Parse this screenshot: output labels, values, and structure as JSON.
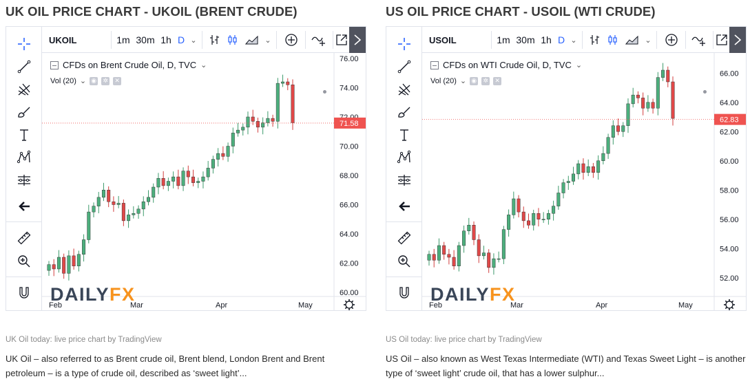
{
  "uk": {
    "heading": "UK OIL PRICE CHART - UKOIL (BRENT CRUDE)",
    "symbol": "UKOIL",
    "intervals": [
      "1m",
      "30m",
      "1h",
      "D"
    ],
    "legend": "CFDs on Brent Crude Oil, D, TVC",
    "volume": "Vol (20)",
    "price_tag": "71.58",
    "price_ticks": [
      "76.00",
      "74.00",
      "72.00",
      "70.00",
      "68.00",
      "66.00",
      "64.00",
      "62.00",
      "60.00"
    ],
    "month_ticks": [
      "Feb",
      "Mar",
      "Apr",
      "May"
    ],
    "caption": "UK Oil today: live price chart by TradingView",
    "description": "UK Oil – also referred to as Brent crude oil, Brent blend, London Brent and Brent petroleum – is a type of crude oil, described as ‘sweet light’...",
    "logo_main": "DAILY",
    "logo_accent": "FX"
  },
  "us": {
    "heading": "US OIL PRICE CHART - USOIL (WTI CRUDE)",
    "symbol": "USOIL",
    "intervals": [
      "1m",
      "30m",
      "1h",
      "D"
    ],
    "legend": "CFDs on WTI Crude Oil, D, TVC",
    "volume": "Vol (20)",
    "price_tag": "62.83",
    "price_ticks": [
      "66.00",
      "64.00",
      "62.00",
      "60.00",
      "58.00",
      "56.00",
      "54.00",
      "52.00"
    ],
    "month_ticks": [
      "Feb",
      "Mar",
      "Apr",
      "May"
    ],
    "caption": "US Oil today: live price chart by TradingView",
    "description": "US Oil – also known as West Texas Intermediate (WTI) and Texas Sweet Light – is another type of ‘sweet light’ crude oil, that has a lower sulphur...",
    "logo_main": "DAILY",
    "logo_accent": "FX"
  },
  "tools": [
    "crosshair-icon",
    "trend-line-icon",
    "fib-icon",
    "brush-icon",
    "text-icon",
    "pattern-icon",
    "measure-icon",
    "back-arrow-icon",
    "ruler-icon",
    "zoom-icon",
    "magnet-icon"
  ],
  "colors": {
    "up": "#26a69a",
    "down": "#ef5350",
    "up_alt": "#3d9a6b",
    "down_alt": "#d23c3c",
    "accent": "#2962ff",
    "tag": "#ef5350"
  },
  "chart_data": [
    {
      "type": "candlestick",
      "title": "CFDs on Brent Crude Oil, D, TVC",
      "ylim": [
        60,
        76
      ],
      "x": [
        "Feb",
        "Mar",
        "Apr",
        "May"
      ],
      "last_price": 71.58,
      "close_series": [
        61.9,
        61.6,
        62.4,
        61.3,
        62.5,
        61.8,
        62.6,
        63.6,
        65.5,
        65.9,
        66.5,
        67.0,
        66.2,
        66.0,
        66.1,
        64.9,
        65.3,
        65.4,
        65.7,
        66.2,
        66.5,
        67.2,
        67.8,
        67.3,
        67.6,
        67.9,
        67.3,
        68.3,
        67.9,
        67.5,
        67.6,
        67.9,
        68.5,
        69.1,
        69.5,
        69.3,
        70.0,
        70.9,
        71.1,
        71.3,
        72.0,
        71.7,
        71.3,
        71.6,
        71.9,
        71.7,
        74.3,
        74.4,
        74.2,
        71.6
      ]
    },
    {
      "type": "candlestick",
      "title": "CFDs on WTI Crude Oil, D, TVC",
      "ylim": [
        51,
        67
      ],
      "x": [
        "Feb",
        "Mar",
        "Apr",
        "May"
      ],
      "last_price": 62.83,
      "close_series": [
        53.6,
        53.2,
        54.2,
        53.6,
        53.4,
        52.8,
        54.2,
        55.2,
        55.6,
        54.6,
        53.5,
        53.7,
        52.7,
        53.3,
        53.3,
        55.3,
        56.3,
        57.4,
        56.5,
        55.9,
        55.6,
        56.4,
        56.0,
        56.0,
        56.4,
        56.9,
        57.8,
        58.5,
        58.6,
        59.1,
        59.8,
        59.2,
        59.6,
        59.2,
        60.0,
        60.5,
        61.6,
        62.4,
        62.0,
        62.4,
        63.9,
        64.5,
        64.3,
        63.6,
        64.0,
        63.6,
        65.7,
        66.2,
        65.4,
        62.9
      ]
    }
  ]
}
